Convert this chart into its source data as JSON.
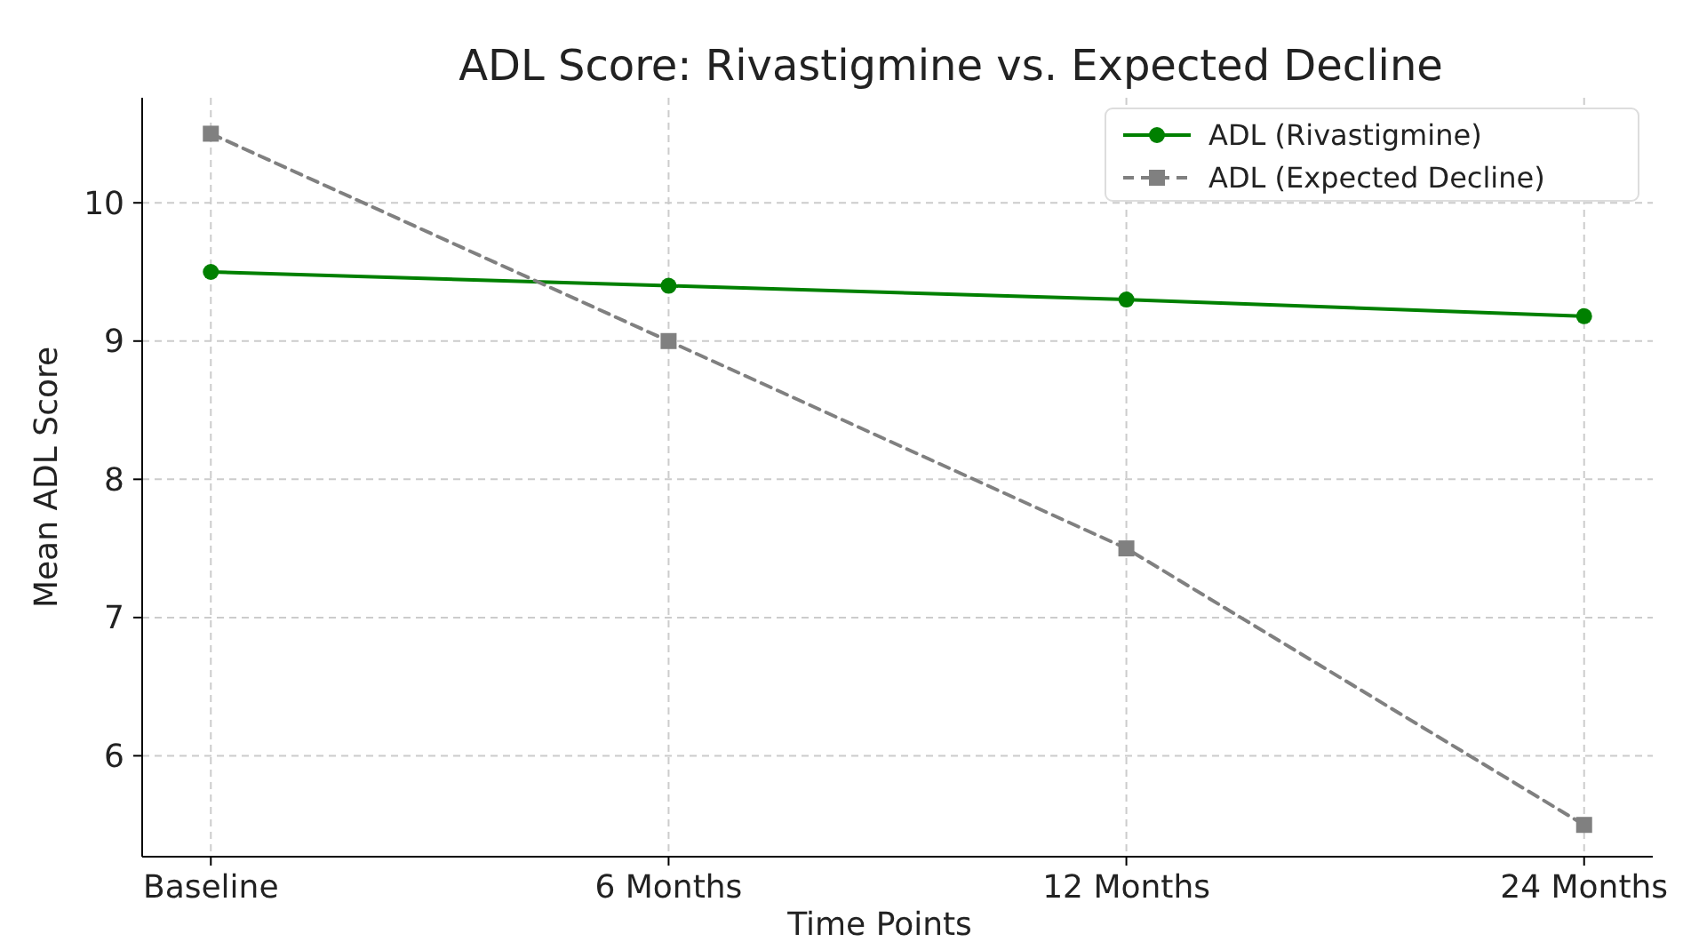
{
  "chart_data": {
    "type": "line",
    "title": "ADL Score: Rivastigmine vs. Expected Decline",
    "xlabel": "Time Points",
    "ylabel": "Mean ADL Score",
    "categories": [
      "Baseline",
      "6 Months",
      "12 Months",
      "24 Months"
    ],
    "series": [
      {
        "name": "ADL (Rivastigmine)",
        "color": "#008000",
        "values": [
          9.5,
          9.4,
          9.3,
          9.18
        ],
        "marker": "circle",
        "line_style": "solid"
      },
      {
        "name": "ADL (Expected Decline)",
        "color": "#808080",
        "values": [
          10.5,
          9.0,
          7.5,
          5.5
        ],
        "marker": "square",
        "line_style": "dashed"
      }
    ],
    "ylim": [
      5.27,
      10.76
    ],
    "yticks": [
      6,
      7,
      8,
      9,
      10
    ],
    "grid": true,
    "legend": "top right"
  }
}
